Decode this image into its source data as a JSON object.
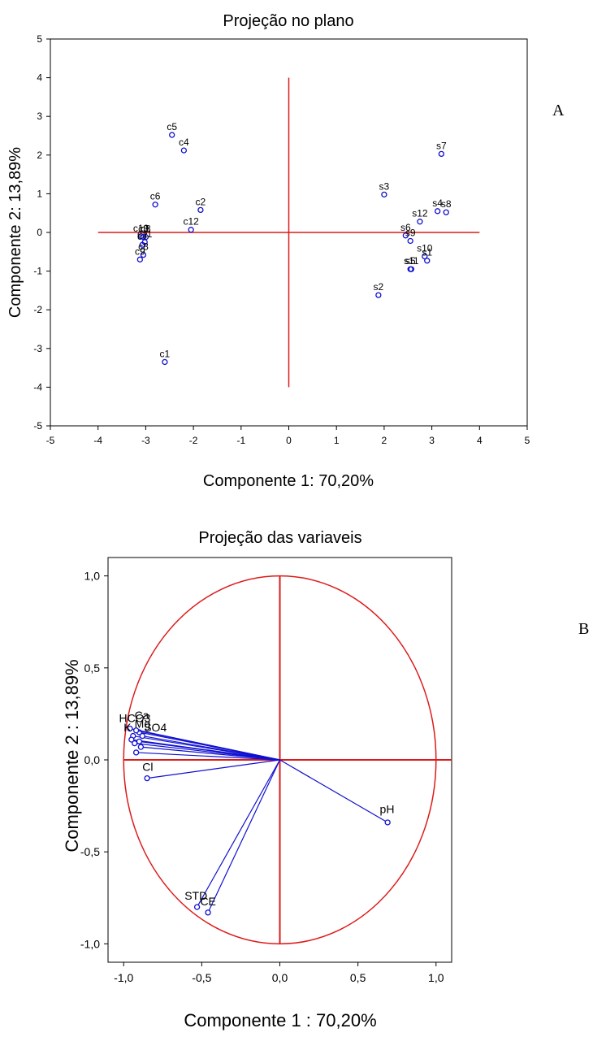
{
  "chart_data": [
    {
      "type": "scatter",
      "panel": "A",
      "title": "Projeção no plano",
      "xlabel": "Componente 1: 70,20%",
      "ylabel": "Componente 2: 13,89%",
      "xlim": [
        -5,
        5
      ],
      "ylim": [
        -5,
        5
      ],
      "xticks": [
        "-5",
        "-4",
        "-3",
        "-2",
        "-1",
        "0",
        "1",
        "2",
        "3",
        "4",
        "5"
      ],
      "yticks": [
        "-5",
        "-4",
        "-3",
        "-2",
        "-1",
        "0",
        "1",
        "2",
        "3",
        "4",
        "5"
      ],
      "reference_lines": {
        "x_axis": [
          -4,
          4
        ],
        "y_axis": [
          -4,
          4
        ]
      },
      "point_color": "#1010d0",
      "line_color": "#dd1a1a",
      "points": [
        {
          "label": "c1",
          "x": -2.6,
          "y": -3.35
        },
        {
          "label": "c2",
          "x": -1.85,
          "y": 0.58
        },
        {
          "label": "c4",
          "x": -2.2,
          "y": 2.12
        },
        {
          "label": "c5",
          "x": -2.45,
          "y": 2.52
        },
        {
          "label": "c6",
          "x": -2.8,
          "y": 0.72
        },
        {
          "label": "c12",
          "x": -2.05,
          "y": 0.07
        },
        {
          "label": "c10",
          "x": -3.1,
          "y": -0.1
        },
        {
          "label": "c3",
          "x": -3.05,
          "y": -0.12
        },
        {
          "label": "c8",
          "x": -3.0,
          "y": -0.12
        },
        {
          "label": "c7",
          "x": -3.07,
          "y": -0.32
        },
        {
          "label": "c11",
          "x": -3.02,
          "y": -0.25
        },
        {
          "label": "c8",
          "x": -3.05,
          "y": -0.58
        },
        {
          "label": "c9",
          "x": -3.12,
          "y": -0.7
        },
        {
          "label": "s2",
          "x": 1.88,
          "y": -1.62
        },
        {
          "label": "s3",
          "x": 2.0,
          "y": 0.98
        },
        {
          "label": "s4",
          "x": 3.12,
          "y": 0.55
        },
        {
          "label": "s5",
          "x": 2.55,
          "y": -0.95
        },
        {
          "label": "s6",
          "x": 2.45,
          "y": -0.08
        },
        {
          "label": "s7",
          "x": 3.2,
          "y": 2.03
        },
        {
          "label": "s8",
          "x": 3.3,
          "y": 0.52
        },
        {
          "label": "s9",
          "x": 2.55,
          "y": -0.22
        },
        {
          "label": "s10",
          "x": 2.85,
          "y": -0.62
        },
        {
          "label": "s11",
          "x": 2.57,
          "y": -0.95
        },
        {
          "label": "s12",
          "x": 2.75,
          "y": 0.28
        },
        {
          "label": "s1",
          "x": 2.9,
          "y": -0.73
        }
      ]
    },
    {
      "type": "scatter",
      "panel": "B",
      "title": "Projeção das variaveis",
      "xlabel": "Componente 1 : 70,20%",
      "ylabel": "Componente 2 : 13,89%",
      "xlim": [
        -1.1,
        1.1
      ],
      "ylim": [
        -1.1,
        1.1
      ],
      "xticks": [
        "-1,0",
        "-0,5",
        "0,0",
        "0,5",
        "1,0"
      ],
      "yticks": [
        "-1,0",
        "-0,5",
        "0,0",
        "0,5",
        "1,0"
      ],
      "circle_radius": 1.0,
      "point_color": "#1010d0",
      "line_color": "#dd1a1a",
      "vectors": [
        {
          "label": "HCO3",
          "x": -0.96,
          "y": 0.17
        },
        {
          "label": "Ca",
          "x": -0.9,
          "y": 0.15
        },
        {
          "label": "Mg",
          "x": -0.92,
          "y": 0.16
        },
        {
          "label": "SO4",
          "x": -0.94,
          "y": 0.13
        },
        {
          "label": "K",
          "x": -0.88,
          "y": 0.13
        },
        {
          "label": "SiO2",
          "x": -0.95,
          "y": 0.11
        },
        {
          "label": "Na",
          "x": -0.9,
          "y": 0.1
        },
        {
          "label": "Alc",
          "x": -0.93,
          "y": 0.09
        },
        {
          "label": "DT",
          "x": -0.89,
          "y": 0.07
        },
        {
          "label": "NO3",
          "x": -0.92,
          "y": 0.04
        },
        {
          "label": "Cl",
          "x": -0.85,
          "y": -0.1
        },
        {
          "label": "pH",
          "x": 0.69,
          "y": -0.34
        },
        {
          "label": "STD",
          "x": -0.53,
          "y": -0.8
        },
        {
          "label": "CE",
          "x": -0.46,
          "y": -0.83
        }
      ],
      "visible_labels": [
        {
          "text": "HCO3",
          "x": -1.03,
          "y": 0.205
        },
        {
          "text": "Ca",
          "x": -0.93,
          "y": 0.22
        },
        {
          "text": "Mg",
          "x": -0.93,
          "y": 0.175
        },
        {
          "text": "SO4",
          "x": -0.87,
          "y": 0.155
        },
        {
          "text": "K",
          "x": -1.0,
          "y": 0.155
        },
        {
          "text": "Cl",
          "x": -0.88,
          "y": -0.06
        },
        {
          "text": "pH",
          "x": 0.64,
          "y": -0.29
        },
        {
          "text": "STD",
          "x": -0.61,
          "y": -0.76
        },
        {
          "text": "CE",
          "x": -0.51,
          "y": -0.79
        }
      ]
    }
  ],
  "panel_letters": {
    "a": "A",
    "b": "B"
  }
}
